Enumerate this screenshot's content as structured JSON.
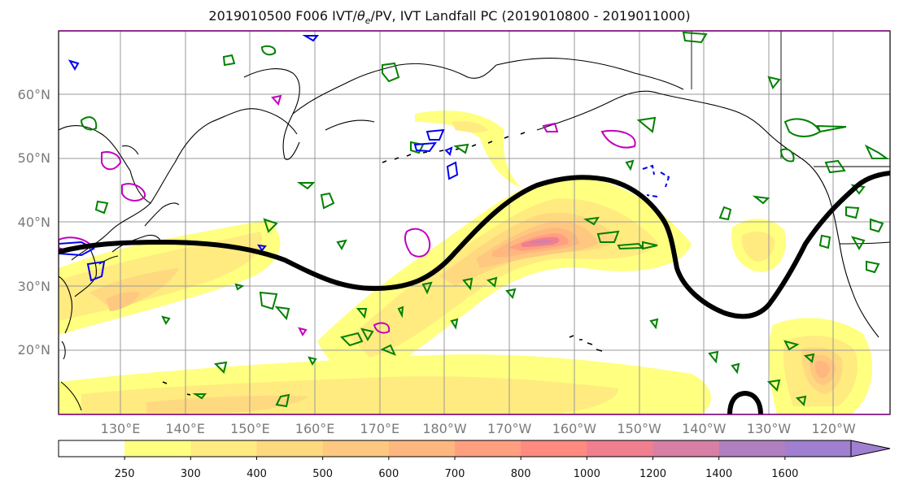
{
  "title_main": "2019010500 F006 IVT/",
  "title_theta": "θ",
  "title_sub": "e",
  "title_rest": "/PV, IVT Landfall PC (2019010800 - 2019011000)",
  "lat_labels": [
    {
      "lat": 60,
      "text": "60°N"
    },
    {
      "lat": 50,
      "text": "50°N"
    },
    {
      "lat": 40,
      "text": "40°N"
    },
    {
      "lat": 30,
      "text": "30°N"
    },
    {
      "lat": 20,
      "text": "20°N"
    }
  ],
  "lon_labels": [
    "130°E",
    "140°E",
    "150°E",
    "160°E",
    "170°E",
    "180°W",
    "170°W",
    "160°W",
    "150°W",
    "140°W",
    "130°W",
    "120°W"
  ],
  "colorbar": {
    "ticks": [
      "250",
      "300",
      "400",
      "500",
      "600",
      "700",
      "800",
      "1000",
      "1200",
      "1400",
      "1600"
    ],
    "colors": [
      "#ffffff",
      "#ffff80",
      "#ffeb80",
      "#ffd980",
      "#ffc880",
      "#ffb780",
      "#ff9f80",
      "#ff8a80",
      "#f07f8f",
      "#d77fa5",
      "#b07fbf",
      "#a07fd0"
    ]
  },
  "colors": {
    "contour_thick": "#000000",
    "pv_green": "#008000",
    "pv_blue": "#0000ee",
    "pv_magenta": "#c000c0"
  }
}
